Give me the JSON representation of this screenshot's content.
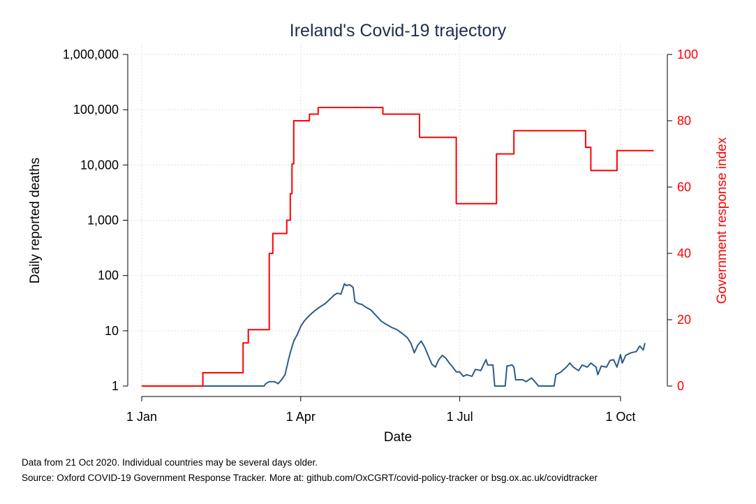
{
  "chart_data": {
    "type": "line",
    "title": "Ireland's Covid-19 trajectory",
    "xlabel": "Date",
    "ylabel_left": "Daily reported deaths",
    "ylabel_right": "Government response index",
    "x_tick_labels": [
      "1 Jan",
      "1 Apr",
      "1 Jul",
      "1 Oct"
    ],
    "x_tick_dates": [
      "2020-01-01",
      "2020-04-01",
      "2020-07-01",
      "2020-10-01"
    ],
    "y_left_scale": "log",
    "y_left_tick_labels": [
      "1",
      "10",
      "100",
      "1,000",
      "10,000",
      "100,000",
      "1,000,000"
    ],
    "y_left_tick_values": [
      1,
      10,
      100,
      1000,
      10000,
      100000,
      1000000
    ],
    "y_left_range": [
      1,
      1000000
    ],
    "y_right_tick_labels": [
      "0",
      "20",
      "40",
      "60",
      "80",
      "100"
    ],
    "y_right_tick_values": [
      0,
      20,
      40,
      60,
      80,
      100
    ],
    "y_right_range": [
      0,
      100
    ],
    "x_range": [
      "2020-01-01",
      "2020-10-21"
    ],
    "grid": true,
    "colors": {
      "deaths": "#2c5c89",
      "response": "#ff0000",
      "right_axis": "#ff0000",
      "title": "#1f2d4e"
    },
    "series": [
      {
        "axis": "left",
        "step": false,
        "points": [
          [
            "2020-01-01",
            1
          ],
          [
            "2020-03-11",
            1
          ],
          [
            "2020-03-12",
            1.1
          ],
          [
            "2020-03-14",
            1.2
          ],
          [
            "2020-03-17",
            1.2
          ],
          [
            "2020-03-19",
            1.1
          ],
          [
            "2020-03-21",
            1.3
          ],
          [
            "2020-03-23",
            1.6
          ],
          [
            "2020-03-25",
            3
          ],
          [
            "2020-03-26",
            4
          ],
          [
            "2020-03-28",
            6.5
          ],
          [
            "2020-03-30",
            8.5
          ],
          [
            "2020-04-01",
            12
          ],
          [
            "2020-04-03",
            15
          ],
          [
            "2020-04-06",
            19
          ],
          [
            "2020-04-09",
            23
          ],
          [
            "2020-04-12",
            27
          ],
          [
            "2020-04-15",
            31
          ],
          [
            "2020-04-18",
            38
          ],
          [
            "2020-04-20",
            44
          ],
          [
            "2020-04-22",
            48
          ],
          [
            "2020-04-24",
            46
          ],
          [
            "2020-04-26",
            71
          ],
          [
            "2020-04-27",
            66
          ],
          [
            "2020-04-29",
            68
          ],
          [
            "2020-05-01",
            61
          ],
          [
            "2020-05-02",
            34
          ],
          [
            "2020-05-04",
            31
          ],
          [
            "2020-05-06",
            30
          ],
          [
            "2020-05-08",
            27
          ],
          [
            "2020-05-11",
            24
          ],
          [
            "2020-05-14",
            19
          ],
          [
            "2020-05-17",
            15
          ],
          [
            "2020-05-20",
            13
          ],
          [
            "2020-05-23",
            11.5
          ],
          [
            "2020-05-26",
            10.5
          ],
          [
            "2020-05-29",
            9
          ],
          [
            "2020-06-01",
            7.5
          ],
          [
            "2020-06-03",
            6
          ],
          [
            "2020-06-05",
            4
          ],
          [
            "2020-06-07",
            5.5
          ],
          [
            "2020-06-09",
            6.5
          ],
          [
            "2020-06-11",
            5
          ],
          [
            "2020-06-13",
            3.5
          ],
          [
            "2020-06-15",
            2.5
          ],
          [
            "2020-06-17",
            2.2
          ],
          [
            "2020-06-19",
            3
          ],
          [
            "2020-06-21",
            3.6
          ],
          [
            "2020-06-23",
            3.2
          ],
          [
            "2020-06-25",
            2.6
          ],
          [
            "2020-06-27",
            2.2
          ],
          [
            "2020-06-29",
            1.8
          ],
          [
            "2020-07-01",
            1.8
          ],
          [
            "2020-07-03",
            1.5
          ],
          [
            "2020-07-05",
            1.6
          ],
          [
            "2020-07-08",
            1.5
          ],
          [
            "2020-07-10",
            2
          ],
          [
            "2020-07-13",
            1.9
          ],
          [
            "2020-07-16",
            3
          ],
          [
            "2020-07-17",
            2.4
          ],
          [
            "2020-07-20",
            2.4
          ],
          [
            "2020-07-21",
            1
          ],
          [
            "2020-07-27",
            1
          ],
          [
            "2020-07-28",
            2.3
          ],
          [
            "2020-07-31",
            2.4
          ],
          [
            "2020-08-01",
            2.2
          ],
          [
            "2020-08-02",
            1.3
          ],
          [
            "2020-08-06",
            1.3
          ],
          [
            "2020-08-08",
            1.2
          ],
          [
            "2020-08-11",
            1.4
          ],
          [
            "2020-08-13",
            1.2
          ],
          [
            "2020-08-15",
            1
          ],
          [
            "2020-08-24",
            1
          ],
          [
            "2020-08-25",
            1.6
          ],
          [
            "2020-08-28",
            1.8
          ],
          [
            "2020-08-31",
            2.2
          ],
          [
            "2020-09-02",
            2.6
          ],
          [
            "2020-09-04",
            2.2
          ],
          [
            "2020-09-07",
            1.9
          ],
          [
            "2020-09-09",
            2.4
          ],
          [
            "2020-09-12",
            2.2
          ],
          [
            "2020-09-14",
            2.6
          ],
          [
            "2020-09-17",
            2.2
          ],
          [
            "2020-09-18",
            1.6
          ],
          [
            "2020-09-20",
            2.3
          ],
          [
            "2020-09-23",
            2.2
          ],
          [
            "2020-09-25",
            2.9
          ],
          [
            "2020-09-27",
            3
          ],
          [
            "2020-09-29",
            2.2
          ],
          [
            "2020-10-01",
            3.7
          ],
          [
            "2020-10-02",
            2.6
          ],
          [
            "2020-10-04",
            3.6
          ],
          [
            "2020-10-07",
            4
          ],
          [
            "2020-10-10",
            4.2
          ],
          [
            "2020-10-12",
            5.3
          ],
          [
            "2020-10-14",
            4.5
          ],
          [
            "2020-10-15",
            6
          ]
        ]
      },
      {
        "axis": "right",
        "step": true,
        "points": [
          [
            "2020-01-01",
            0
          ],
          [
            "2020-02-05",
            4
          ],
          [
            "2020-02-28",
            13
          ],
          [
            "2020-03-02",
            17
          ],
          [
            "2020-03-14",
            40
          ],
          [
            "2020-03-16",
            46
          ],
          [
            "2020-03-24",
            50
          ],
          [
            "2020-03-26",
            58
          ],
          [
            "2020-03-27",
            67
          ],
          [
            "2020-03-28",
            80
          ],
          [
            "2020-04-06",
            82
          ],
          [
            "2020-04-11",
            84
          ],
          [
            "2020-05-18",
            82
          ],
          [
            "2020-06-08",
            75
          ],
          [
            "2020-06-29",
            55
          ],
          [
            "2020-07-22",
            70
          ],
          [
            "2020-08-01",
            77
          ],
          [
            "2020-09-11",
            72
          ],
          [
            "2020-09-14",
            65
          ],
          [
            "2020-09-29",
            71
          ],
          [
            "2020-10-20",
            71
          ]
        ]
      }
    ]
  },
  "notes": {
    "line1": "Data from 21 Oct 2020. Individual countries may be several days older.",
    "line2": "Source: Oxford COVID-19 Government Response Tracker. More at: github.com/OxCGRT/covid-policy-tracker or bsg.ox.ac.uk/covidtracker"
  }
}
